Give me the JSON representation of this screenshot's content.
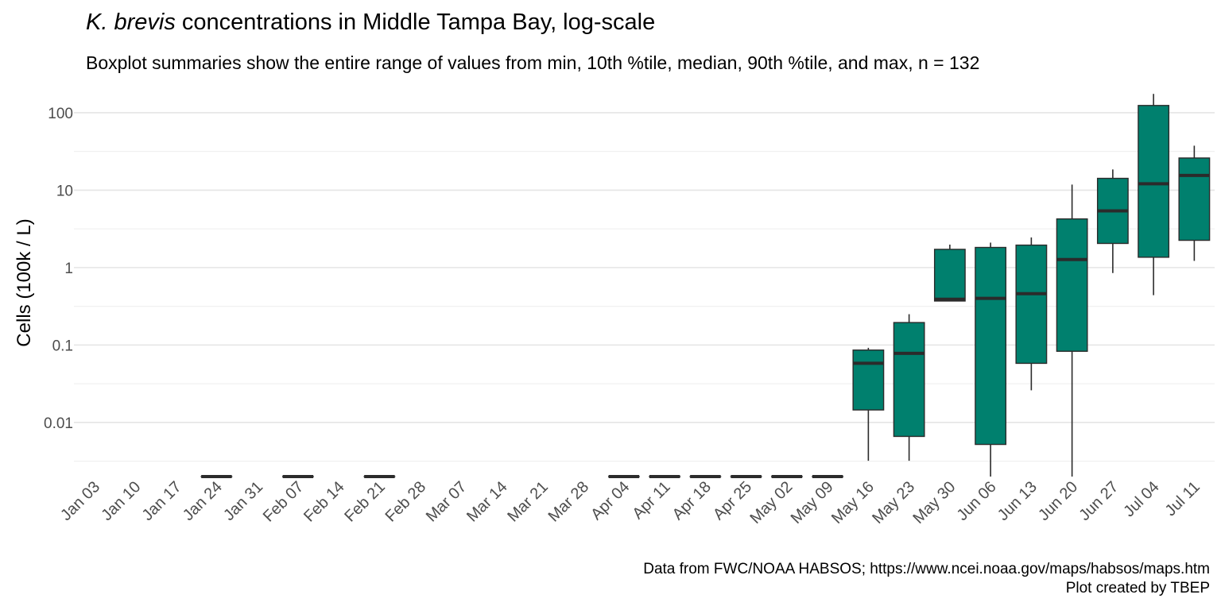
{
  "title": {
    "italic": "K. brevis",
    "rest": " concentrations in Middle Tampa Bay, log-scale"
  },
  "subtitle": "Boxplot summaries show the entire range of values from min, 10th %tile, median, 90th %tile, and max, n = 132",
  "caption": {
    "line1": "Data from FWC/NOAA HABSOS; https://www.ncei.noaa.gov/maps/habsos/maps.htm",
    "line2": "Plot created by TBEP"
  },
  "colors": {
    "box_fill": "#00806E",
    "box_outline": "#2b2b2b",
    "median": "#2b2b2b"
  },
  "chart_data": {
    "type": "boxplot",
    "ylabel": "Cells (100k / L)",
    "xlabel": "",
    "y_scale": "log10",
    "ylim": [
      0.002,
      160
    ],
    "y_ticks": [
      0.01,
      0.1,
      1,
      10,
      100
    ],
    "y_tick_labels": [
      "0.01",
      "0.1",
      "1",
      "10",
      "100"
    ],
    "grid": true,
    "legend": "none",
    "categories": [
      "Jan 03",
      "Jan 10",
      "Jan 17",
      "Jan 24",
      "Jan 31",
      "Feb 07",
      "Feb 14",
      "Feb 21",
      "Feb 28",
      "Mar 07",
      "Mar 14",
      "Mar 21",
      "Mar 28",
      "Apr 04",
      "Apr 11",
      "Apr 18",
      "Apr 25",
      "May 02",
      "May 09",
      "May 16",
      "May 23",
      "May 30",
      "Jun 06",
      "Jun 13",
      "Jun 20",
      "Jun 27",
      "Jul 04",
      "Jul 11"
    ],
    "boxes": [
      null,
      null,
      null,
      {
        "min": 0.002,
        "p10": 0.002,
        "median": 0.002,
        "p90": 0.002,
        "max": 0.002
      },
      null,
      {
        "min": 0.002,
        "p10": 0.002,
        "median": 0.002,
        "p90": 0.002,
        "max": 0.002
      },
      null,
      {
        "min": 0.002,
        "p10": 0.002,
        "median": 0.002,
        "p90": 0.002,
        "max": 0.002
      },
      null,
      null,
      null,
      null,
      null,
      {
        "min": 0.002,
        "p10": 0.002,
        "median": 0.002,
        "p90": 0.002,
        "max": 0.002
      },
      {
        "min": 0.002,
        "p10": 0.002,
        "median": 0.002,
        "p90": 0.002,
        "max": 0.002
      },
      {
        "min": 0.002,
        "p10": 0.002,
        "median": 0.002,
        "p90": 0.002,
        "max": 0.002
      },
      {
        "min": 0.002,
        "p10": 0.002,
        "median": 0.002,
        "p90": 0.002,
        "max": 0.002
      },
      {
        "min": 0.002,
        "p10": 0.002,
        "median": 0.002,
        "p90": 0.002,
        "max": 0.002
      },
      {
        "min": 0.002,
        "p10": 0.002,
        "median": 0.002,
        "p90": 0.002,
        "max": 0.002
      },
      {
        "min": 0.0032,
        "p10": 0.0145,
        "median": 0.058,
        "p90": 0.086,
        "max": 0.092
      },
      {
        "min": 0.0032,
        "p10": 0.0066,
        "median": 0.078,
        "p90": 0.195,
        "max": 0.25
      },
      {
        "min": 0.37,
        "p10": 0.37,
        "median": 0.39,
        "p90": 1.72,
        "max": 1.98
      },
      {
        "min": 0.002,
        "p10": 0.0052,
        "median": 0.4,
        "p90": 1.82,
        "max": 2.1
      },
      {
        "min": 0.026,
        "p10": 0.058,
        "median": 0.46,
        "p90": 1.95,
        "max": 2.45
      },
      {
        "min": 0.002,
        "p10": 0.083,
        "median": 1.27,
        "p90": 4.25,
        "max": 11.8
      },
      {
        "min": 0.85,
        "p10": 2.05,
        "median": 5.4,
        "p90": 14.2,
        "max": 18.5
      },
      {
        "min": 0.44,
        "p10": 1.36,
        "median": 12.1,
        "p90": 124,
        "max": 175
      },
      {
        "min": 1.22,
        "p10": 2.25,
        "median": 15.5,
        "p90": 26.0,
        "max": 37.5
      }
    ]
  }
}
